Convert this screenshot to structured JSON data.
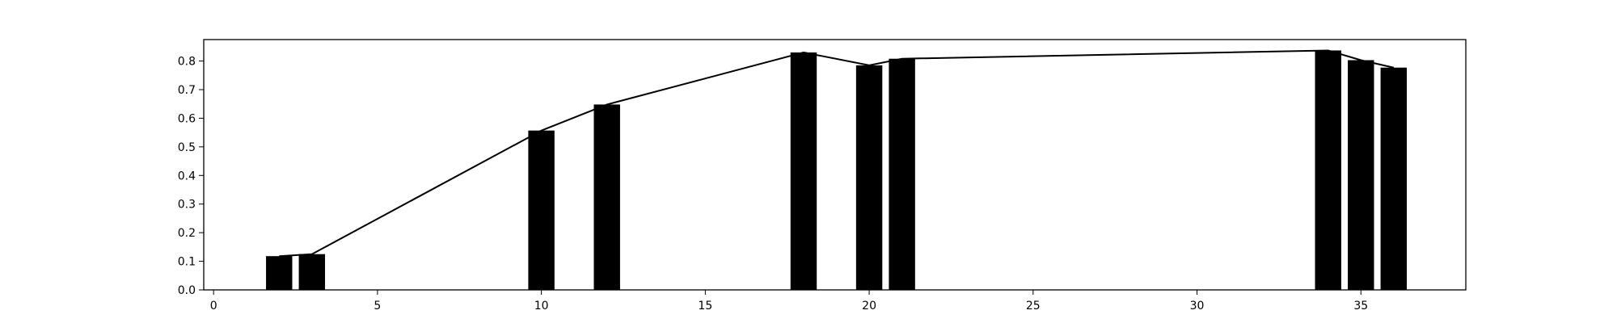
{
  "chart_data": {
    "type": "bar",
    "title": "",
    "xlabel": "",
    "ylabel": "",
    "xlim": [
      -0.3,
      38.2
    ],
    "ylim": [
      0.0,
      0.875
    ],
    "grid": false,
    "bar_width": 0.8,
    "x_ticks": [
      0,
      5,
      10,
      15,
      20,
      25,
      30,
      35
    ],
    "y_ticks": [
      0.0,
      0.1,
      0.2,
      0.3,
      0.4,
      0.5,
      0.6,
      0.7,
      0.8
    ],
    "x_tick_labels": [
      "0",
      "5",
      "10",
      "15",
      "20",
      "25",
      "30",
      "35"
    ],
    "y_tick_labels": [
      "0.0",
      "0.1",
      "0.2",
      "0.3",
      "0.4",
      "0.5",
      "0.6",
      "0.7",
      "0.8"
    ],
    "series": [
      {
        "name": "bars",
        "type": "bar",
        "color": "#000000",
        "x": [
          2,
          3,
          10,
          12,
          18,
          20,
          21,
          34,
          35,
          36
        ],
        "values": [
          0.118,
          0.125,
          0.557,
          0.648,
          0.83,
          0.785,
          0.808,
          0.837,
          0.803,
          0.777
        ]
      },
      {
        "name": "line",
        "type": "line",
        "color": "#000000",
        "x": [
          2,
          3,
          10,
          12,
          18,
          20,
          21,
          34,
          35,
          36
        ],
        "values": [
          0.118,
          0.125,
          0.557,
          0.648,
          0.83,
          0.785,
          0.808,
          0.837,
          0.803,
          0.777
        ]
      }
    ]
  }
}
